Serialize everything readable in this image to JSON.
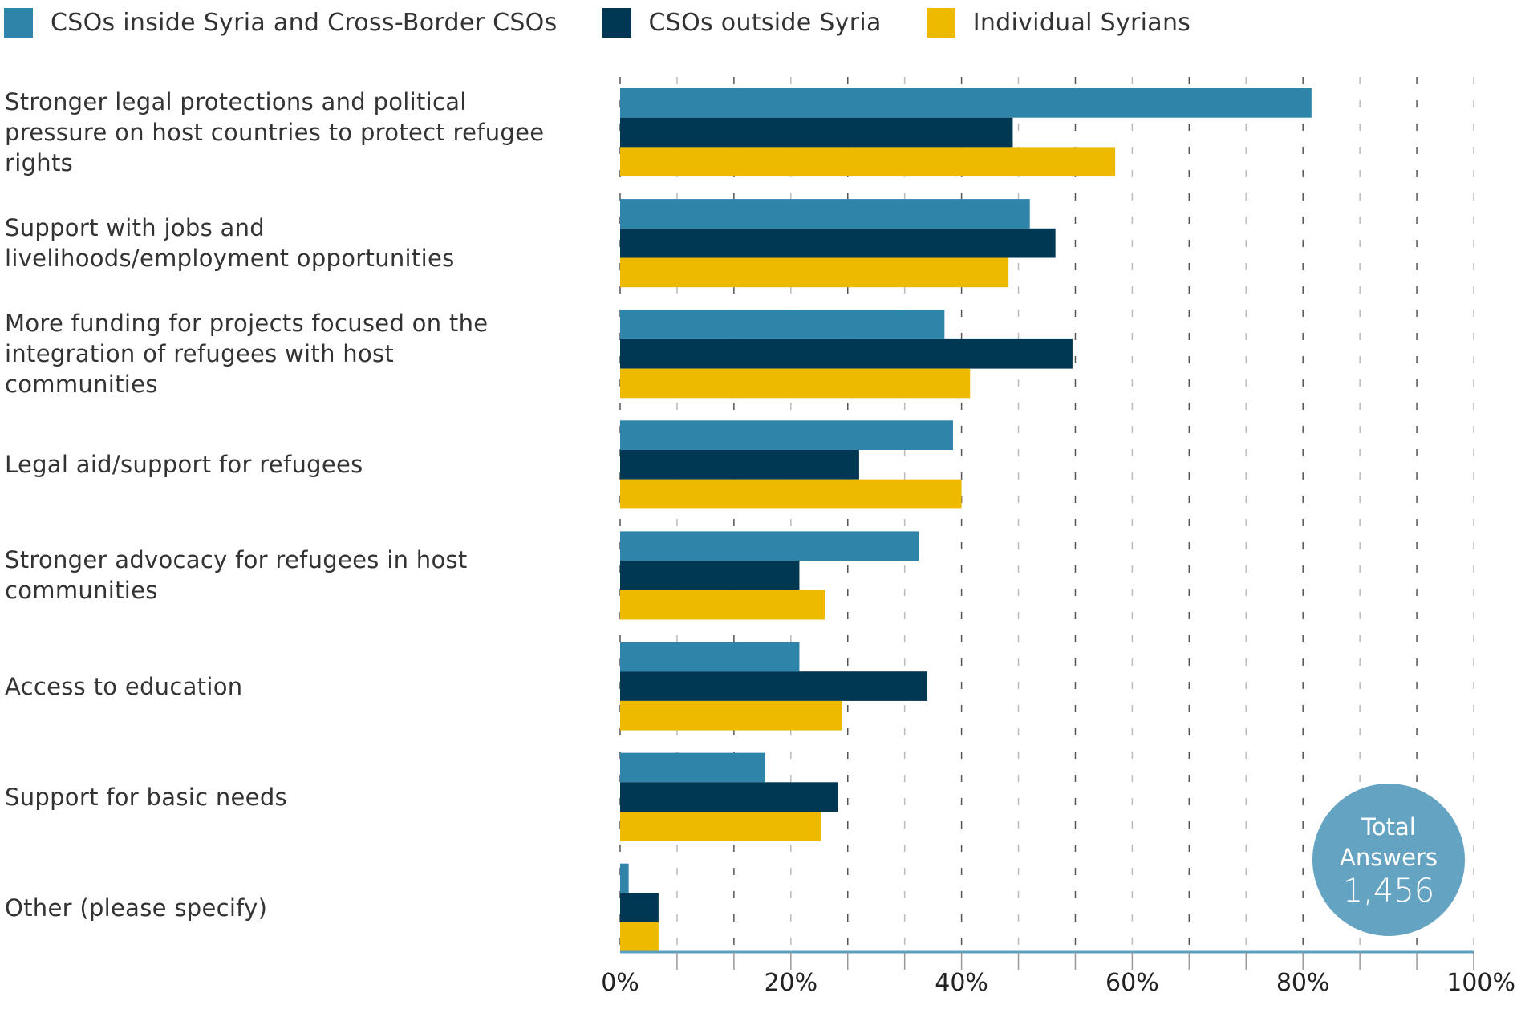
{
  "legend": [
    {
      "label": "CSOs inside Syria and Cross-Border CSOs",
      "color": "#2f84aa"
    },
    {
      "label": "CSOs outside Syria",
      "color": "#003752"
    },
    {
      "label": "Individual Syrians",
      "color": "#edba00"
    }
  ],
  "badge": {
    "line1": "Total",
    "line2": "Answers",
    "value": "1,456",
    "color": "#64a4c2"
  },
  "chart_data": {
    "type": "bar",
    "orientation": "horizontal",
    "title": "",
    "xlabel": "",
    "ylabel": "",
    "xlim": [
      0,
      100
    ],
    "unit": "%",
    "x_ticks": [
      "0%",
      "20%",
      "40%",
      "60%",
      "80%",
      "100%"
    ],
    "grid": "vertical dashed",
    "legend_position": "top-left",
    "categories": [
      "Stronger legal protections and political pressure on host countries to protect refugee rights",
      "Support with jobs and livelihoods/employment opportunities",
      "More funding for projects focused on the integration of refugees with host communities",
      "Legal aid/support for refugees",
      "Stronger advocacy for refugees in host communities",
      "Access to education",
      "Support for basic needs",
      "Other (please specify)"
    ],
    "category_lines": [
      [
        "Stronger legal protections and political",
        "pressure on host countries to protect refugee",
        "rights"
      ],
      [
        "Support with jobs and",
        "livelihoods/employment opportunities"
      ],
      [
        "More funding for projects focused on the",
        "integration of refugees with host",
        "communities"
      ],
      [
        "Legal aid/support for refugees"
      ],
      [
        "Stronger advocacy for refugees in host",
        "communities"
      ],
      [
        "Access to education"
      ],
      [
        "Support for basic needs"
      ],
      [
        "Other (please specify)"
      ]
    ],
    "series": [
      {
        "name": "CSOs inside Syria and Cross-Border CSOs",
        "color": "#2f84aa",
        "values": [
          81,
          48,
          38,
          39,
          35,
          21,
          17,
          1
        ]
      },
      {
        "name": "CSOs outside Syria",
        "color": "#003752",
        "values": [
          46,
          51,
          53,
          28,
          21,
          36,
          25.5,
          4.5
        ]
      },
      {
        "name": "Individual Syrians",
        "color": "#edba00",
        "values": [
          58,
          45.5,
          41,
          40,
          24,
          26,
          23.5,
          4.5
        ]
      }
    ],
    "total_answers": 1456
  }
}
